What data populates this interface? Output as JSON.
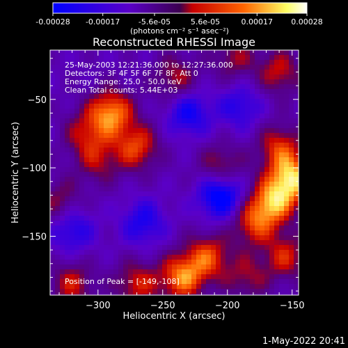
{
  "colorbar": {
    "tick_labels": [
      "-0.00028",
      "-0.00017",
      "-5.6e-05",
      "5.6e-05",
      "0.00017",
      "0.00028"
    ],
    "tick_values": [
      -0.00028,
      -0.00017,
      -5.6e-05,
      5.6e-05,
      0.00017,
      0.00028
    ],
    "min": -0.00028,
    "max": 0.00028,
    "unit_label": "(photons cm⁻² s⁻¹ asec⁻²)",
    "colors": [
      "#0000ff",
      "#5a00c8",
      "#c80000",
      "#ff6400",
      "#ffff64",
      "#ffffff"
    ]
  },
  "chart_data": {
    "type": "heatmap",
    "title": "Reconstructed RHESSI Image",
    "xlabel": "Heliocentric X (arcsec)",
    "ylabel": "Heliocentric Y (arcsec)",
    "xlim": [
      -337,
      -145
    ],
    "ylim": [
      -193,
      -14
    ],
    "x_ticks": [
      -300,
      -250,
      -200,
      -150
    ],
    "y_ticks": [
      -50,
      -100,
      -150
    ],
    "annotations": [
      "25-May-2003 12:21:36.000 to 12:27:36.000",
      "Detectors: 3F 4F 5F 6F 7F 8F, Att 0",
      "Energy Range: 25.0 - 50.0 keV",
      "Clean     Total counts: 5.44E+03"
    ],
    "peak_label": "Position of Peak = [-149,-108]",
    "peak_position": [
      -149,
      -108
    ],
    "sources": [
      {
        "x": -290,
        "y": -60,
        "strength": 0.000255
      },
      {
        "x": -270,
        "y": -85,
        "strength": 0.00019
      },
      {
        "x": -310,
        "y": -75,
        "strength": 0.00013
      },
      {
        "x": -300,
        "y": -95,
        "strength": 0.00012
      },
      {
        "x": -240,
        "y": -35,
        "strength": 0.00014
      },
      {
        "x": -150,
        "y": -108,
        "strength": 0.00028
      },
      {
        "x": -165,
        "y": -125,
        "strength": 0.00024
      },
      {
        "x": -180,
        "y": -140,
        "strength": 0.00018
      },
      {
        "x": -160,
        "y": -85,
        "strength": 0.00017
      },
      {
        "x": -160,
        "y": -30,
        "strength": 0.00015
      },
      {
        "x": -195,
        "y": -20,
        "strength": 0.00012
      },
      {
        "x": -205,
        "y": -100,
        "strength": 0.00015
      },
      {
        "x": -215,
        "y": -165,
        "strength": 0.00019
      },
      {
        "x": -235,
        "y": -180,
        "strength": 0.00024
      },
      {
        "x": -270,
        "y": -185,
        "strength": 0.00016
      },
      {
        "x": -320,
        "y": -185,
        "strength": 0.00015
      },
      {
        "x": -330,
        "y": -125,
        "strength": 0.00012
      },
      {
        "x": -155,
        "y": -165,
        "strength": 0.00016
      },
      {
        "x": -185,
        "y": -180,
        "strength": 0.00012
      },
      {
        "x": -205,
        "y": -120,
        "strength": -0.00026
      },
      {
        "x": -230,
        "y": -60,
        "strength": -0.00017
      },
      {
        "x": -320,
        "y": -145,
        "strength": -0.00015
      },
      {
        "x": -265,
        "y": -140,
        "strength": -0.00015
      },
      {
        "x": -190,
        "y": -55,
        "strength": -0.00013
      }
    ]
  },
  "footer": {
    "timestamp": "1-May-2022 20:41"
  }
}
